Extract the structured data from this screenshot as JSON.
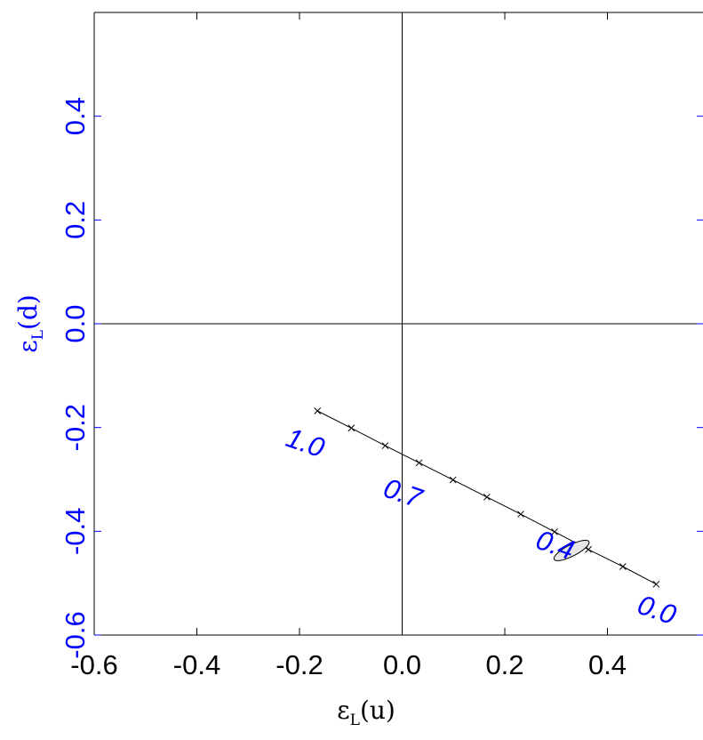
{
  "chart_data": {
    "type": "line",
    "xlabel": {
      "main": "ε",
      "sub": "L",
      "rest": "(u)"
    },
    "ylabel": {
      "main": "ε",
      "sub": "L",
      "rest": "(d)"
    },
    "xlim": [
      -0.6,
      0.6
    ],
    "ylim": [
      -0.6,
      0.6
    ],
    "x_ticks": [
      {
        "value": -0.6,
        "label": "-0.6"
      },
      {
        "value": -0.4,
        "label": "-0.4"
      },
      {
        "value": -0.2,
        "label": "-0.2"
      },
      {
        "value": 0.0,
        "label": "0.0"
      },
      {
        "value": 0.2,
        "label": "0.2"
      },
      {
        "value": 0.4,
        "label": "0.4"
      }
    ],
    "y_ticks": [
      {
        "value": -0.6,
        "label": "-0.6"
      },
      {
        "value": -0.4,
        "label": "-0.4"
      },
      {
        "value": -0.2,
        "label": "-0.2"
      },
      {
        "value": 0.0,
        "label": "0.0"
      },
      {
        "value": 0.2,
        "label": "0.2"
      },
      {
        "value": 0.4,
        "label": "0.4"
      }
    ],
    "zero_lines": true,
    "grid": false,
    "series": [
      {
        "x": [
          0.495,
          0.43,
          0.363,
          0.297,
          0.231,
          0.165,
          0.099,
          0.033,
          -0.033,
          -0.099,
          -0.165
        ],
        "y": [
          -0.502,
          -0.468,
          -0.435,
          -0.401,
          -0.367,
          -0.334,
          -0.301,
          -0.268,
          -0.235,
          -0.201,
          -0.168
        ],
        "marker": "x",
        "color": "#000000"
      }
    ],
    "ellipse": {
      "cx": 0.33,
      "cy": -0.437,
      "rx": 0.038,
      "ry": 0.011,
      "angle_deg": 27
    },
    "annotations": [
      {
        "text": "0.0",
        "x": 0.495,
        "y": -0.555
      },
      {
        "text": "0.4",
        "x": 0.297,
        "y": -0.43
      },
      {
        "text": "0.7",
        "x": 0.0,
        "y": -0.33
      },
      {
        "text": "1.0",
        "x": -0.19,
        "y": -0.233
      }
    ],
    "colors": {
      "axis": "#000000",
      "y_ticks": "#0000ff",
      "annotations": "#0000ff",
      "ellipse_fill": "#e6e6e6"
    }
  }
}
